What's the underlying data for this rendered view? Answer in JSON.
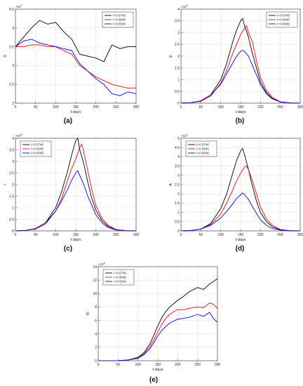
{
  "legend": [
    "r=0.0746",
    "r=0.0646",
    "r=0.0546"
  ],
  "colors": {
    "r=0.0746": "#000000",
    "r=0.0646": "#ff0000",
    "r=0.0546": "#0000ff"
  },
  "chart_data": [
    {
      "panel": "(a)",
      "type": "line",
      "ylabel": "S",
      "xlabel": "t-days",
      "exponent": "×10^7",
      "xlim": [
        0,
        300
      ],
      "ylim": [
        2,
        4.5
      ],
      "xticks": [
        0,
        50,
        100,
        150,
        200,
        250,
        300
      ],
      "yticks": [
        2,
        2.5,
        3,
        3.5,
        4,
        4.5
      ],
      "grid": true,
      "legend_position": "top-right",
      "series": [
        {
          "name": "r=0.0746",
          "x": [
            0,
            20,
            40,
            60,
            80,
            100,
            120,
            140,
            160,
            180,
            200,
            220,
            240,
            260,
            280,
            300
          ],
          "y": [
            3.5,
            3.75,
            4.0,
            4.2,
            4.1,
            4.15,
            3.9,
            3.7,
            3.3,
            3.25,
            3.2,
            3.1,
            3.55,
            3.45,
            3.5,
            3.5
          ]
        },
        {
          "name": "r=0.0646",
          "x": [
            0,
            20,
            40,
            60,
            80,
            100,
            120,
            140,
            160,
            180,
            200,
            220,
            240,
            260,
            280,
            300
          ],
          "y": [
            3.5,
            3.5,
            3.55,
            3.55,
            3.5,
            3.5,
            3.4,
            3.3,
            3.0,
            2.85,
            2.7,
            2.6,
            2.5,
            2.45,
            2.4,
            2.4
          ]
        },
        {
          "name": "r=0.0546",
          "x": [
            0,
            20,
            40,
            60,
            80,
            100,
            120,
            140,
            160,
            180,
            200,
            220,
            240,
            260,
            280,
            300
          ],
          "y": [
            3.5,
            3.65,
            3.7,
            3.6,
            3.55,
            3.5,
            3.45,
            3.4,
            3.05,
            2.85,
            2.65,
            2.5,
            2.25,
            2.2,
            2.3,
            2.25
          ]
        }
      ]
    },
    {
      "panel": "(b)",
      "type": "line",
      "ylabel": "E",
      "xlabel": "t-days",
      "exponent": "×10^5",
      "xlim": [
        0,
        300
      ],
      "ylim": [
        0,
        4
      ],
      "xticks": [
        0,
        50,
        100,
        150,
        200,
        250,
        300
      ],
      "yticks": [
        0,
        0.5,
        1,
        1.5,
        2,
        2.5,
        3,
        3.5,
        4
      ],
      "grid": true,
      "legend_position": "top-right",
      "series": [
        {
          "name": "r=0.0746",
          "x": [
            0,
            25,
            50,
            75,
            100,
            115,
            130,
            140,
            150,
            155,
            160,
            170,
            180,
            190,
            200,
            215,
            230,
            250,
            275,
            300
          ],
          "y": [
            0,
            0.02,
            0.1,
            0.35,
            1.0,
            1.7,
            2.6,
            3.1,
            3.5,
            3.6,
            3.3,
            2.8,
            2.1,
            1.5,
            0.9,
            0.45,
            0.2,
            0.05,
            0.01,
            0
          ]
        },
        {
          "name": "r=0.0646",
          "x": [
            0,
            25,
            50,
            75,
            100,
            115,
            130,
            140,
            150,
            160,
            165,
            170,
            180,
            190,
            200,
            215,
            230,
            250,
            275,
            300
          ],
          "y": [
            0,
            0.02,
            0.08,
            0.3,
            0.85,
            1.4,
            2.1,
            2.5,
            2.9,
            3.2,
            3.3,
            3.0,
            2.6,
            1.8,
            1.1,
            0.55,
            0.25,
            0.06,
            0.01,
            0
          ]
        },
        {
          "name": "r=0.0546",
          "x": [
            0,
            25,
            50,
            75,
            100,
            115,
            130,
            140,
            150,
            155,
            160,
            170,
            180,
            190,
            200,
            215,
            230,
            250,
            275,
            300
          ],
          "y": [
            0,
            0.02,
            0.1,
            0.35,
            0.8,
            1.25,
            1.7,
            2.0,
            2.2,
            2.25,
            2.2,
            2.0,
            1.6,
            1.2,
            0.8,
            0.4,
            0.18,
            0.05,
            0.01,
            0
          ]
        }
      ]
    },
    {
      "panel": "(c)",
      "type": "line",
      "ylabel": "I",
      "xlabel": "t-days",
      "exponent": "×10^5",
      "xlim": [
        0,
        300
      ],
      "ylim": [
        0,
        4
      ],
      "xticks": [
        0,
        50,
        100,
        150,
        200,
        250,
        300
      ],
      "yticks": [
        0,
        0.5,
        1,
        1.5,
        2,
        2.5,
        3,
        3.5,
        4
      ],
      "grid": true,
      "legend_position": "top-left",
      "series": [
        {
          "name": "r=0.0746",
          "x": [
            0,
            25,
            50,
            75,
            100,
            115,
            130,
            140,
            150,
            155,
            160,
            170,
            180,
            190,
            200,
            215,
            230,
            250,
            275,
            300
          ],
          "y": [
            0,
            0.02,
            0.1,
            0.35,
            1.0,
            1.7,
            2.6,
            3.3,
            3.9,
            4.0,
            3.5,
            2.9,
            2.1,
            1.4,
            0.9,
            0.45,
            0.2,
            0.05,
            0.01,
            0
          ]
        },
        {
          "name": "r=0.0646",
          "x": [
            0,
            25,
            50,
            75,
            100,
            115,
            130,
            140,
            150,
            160,
            165,
            170,
            180,
            190,
            200,
            215,
            230,
            250,
            275,
            300
          ],
          "y": [
            0,
            0.02,
            0.08,
            0.3,
            0.85,
            1.4,
            2.2,
            2.7,
            3.1,
            3.6,
            3.75,
            3.4,
            2.6,
            1.8,
            1.1,
            0.55,
            0.25,
            0.06,
            0.01,
            0
          ]
        },
        {
          "name": "r=0.0546",
          "x": [
            0,
            25,
            50,
            75,
            100,
            115,
            130,
            140,
            150,
            155,
            160,
            170,
            180,
            190,
            200,
            215,
            230,
            250,
            275,
            300
          ],
          "y": [
            0,
            0.02,
            0.1,
            0.35,
            0.85,
            1.3,
            1.8,
            2.2,
            2.5,
            2.6,
            2.4,
            2.0,
            1.5,
            1.1,
            0.7,
            0.35,
            0.15,
            0.04,
            0.01,
            0
          ]
        }
      ]
    },
    {
      "panel": "(d)",
      "type": "line",
      "ylabel": "A",
      "xlabel": "t-days",
      "exponent": "×10^4",
      "xlim": [
        0,
        300
      ],
      "ylim": [
        0,
        5
      ],
      "xticks": [
        0,
        50,
        100,
        150,
        200,
        250,
        300
      ],
      "yticks": [
        0,
        0.5,
        1,
        1.5,
        2,
        2.5,
        3,
        3.5,
        4,
        4.5,
        5
      ],
      "grid": true,
      "legend_position": "top-left",
      "series": [
        {
          "name": "r=0.0746",
          "x": [
            0,
            25,
            50,
            75,
            100,
            115,
            130,
            140,
            150,
            155,
            160,
            170,
            180,
            190,
            200,
            215,
            230,
            250,
            275,
            300
          ],
          "y": [
            0,
            0.02,
            0.1,
            0.4,
            1.2,
            2.0,
            3.1,
            3.8,
            4.3,
            4.45,
            4.1,
            3.3,
            2.4,
            1.6,
            1.0,
            0.5,
            0.22,
            0.06,
            0.01,
            0
          ]
        },
        {
          "name": "r=0.0646",
          "x": [
            0,
            25,
            50,
            75,
            100,
            115,
            130,
            140,
            150,
            160,
            165,
            170,
            180,
            190,
            200,
            215,
            230,
            250,
            275,
            300
          ],
          "y": [
            0,
            0.02,
            0.1,
            0.35,
            0.9,
            1.5,
            2.2,
            2.7,
            3.1,
            3.45,
            3.5,
            3.3,
            2.7,
            2.0,
            1.3,
            0.65,
            0.3,
            0.08,
            0.01,
            0
          ]
        },
        {
          "name": "r=0.0546",
          "x": [
            0,
            25,
            50,
            75,
            100,
            115,
            130,
            140,
            150,
            155,
            160,
            170,
            180,
            190,
            200,
            215,
            230,
            250,
            275,
            300
          ],
          "y": [
            0,
            0.02,
            0.1,
            0.3,
            0.7,
            1.05,
            1.45,
            1.75,
            1.95,
            2.05,
            1.95,
            1.7,
            1.3,
            0.95,
            0.6,
            0.3,
            0.13,
            0.04,
            0.01,
            0
          ]
        }
      ]
    },
    {
      "panel": "(e)",
      "type": "line",
      "ylabel": "R",
      "xlabel": "t-days",
      "exponent": "×10^6",
      "xlim": [
        0,
        300
      ],
      "ylim": [
        0,
        14
      ],
      "xticks": [
        0,
        50,
        100,
        150,
        200,
        250,
        300
      ],
      "yticks": [
        0,
        2,
        4,
        6,
        8,
        10,
        12,
        14
      ],
      "grid": true,
      "legend_position": "top-left",
      "series": [
        {
          "name": "r=0.0746",
          "x": [
            0,
            25,
            50,
            75,
            100,
            115,
            130,
            140,
            150,
            160,
            170,
            180,
            190,
            200,
            215,
            230,
            250,
            265,
            280,
            290,
            300
          ],
          "y": [
            0,
            0,
            0.02,
            0.1,
            0.5,
            1.2,
            2.5,
            3.8,
            5.2,
            6.4,
            7.3,
            8.0,
            8.5,
            9.0,
            9.6,
            10.3,
            10.9,
            10.6,
            11.4,
            11.8,
            12.2
          ]
        },
        {
          "name": "r=0.0646",
          "x": [
            0,
            25,
            50,
            75,
            100,
            115,
            130,
            140,
            150,
            160,
            170,
            180,
            190,
            200,
            215,
            230,
            250,
            265,
            280,
            290,
            300
          ],
          "y": [
            0,
            0,
            0.02,
            0.1,
            0.4,
            1.0,
            2.1,
            3.1,
            4.3,
            5.4,
            6.3,
            6.9,
            7.3,
            7.6,
            7.6,
            7.8,
            8.0,
            7.9,
            8.6,
            8.4,
            7.8
          ]
        },
        {
          "name": "r=0.0546",
          "x": [
            0,
            25,
            50,
            75,
            100,
            115,
            130,
            140,
            150,
            160,
            170,
            180,
            190,
            200,
            215,
            230,
            250,
            265,
            280,
            290,
            300
          ],
          "y": [
            0,
            0,
            0.02,
            0.1,
            0.35,
            0.9,
            1.8,
            2.7,
            3.7,
            4.5,
            5.1,
            5.6,
            5.9,
            6.2,
            6.3,
            6.5,
            6.9,
            6.6,
            7.2,
            6.3,
            5.7
          ]
        }
      ]
    }
  ]
}
